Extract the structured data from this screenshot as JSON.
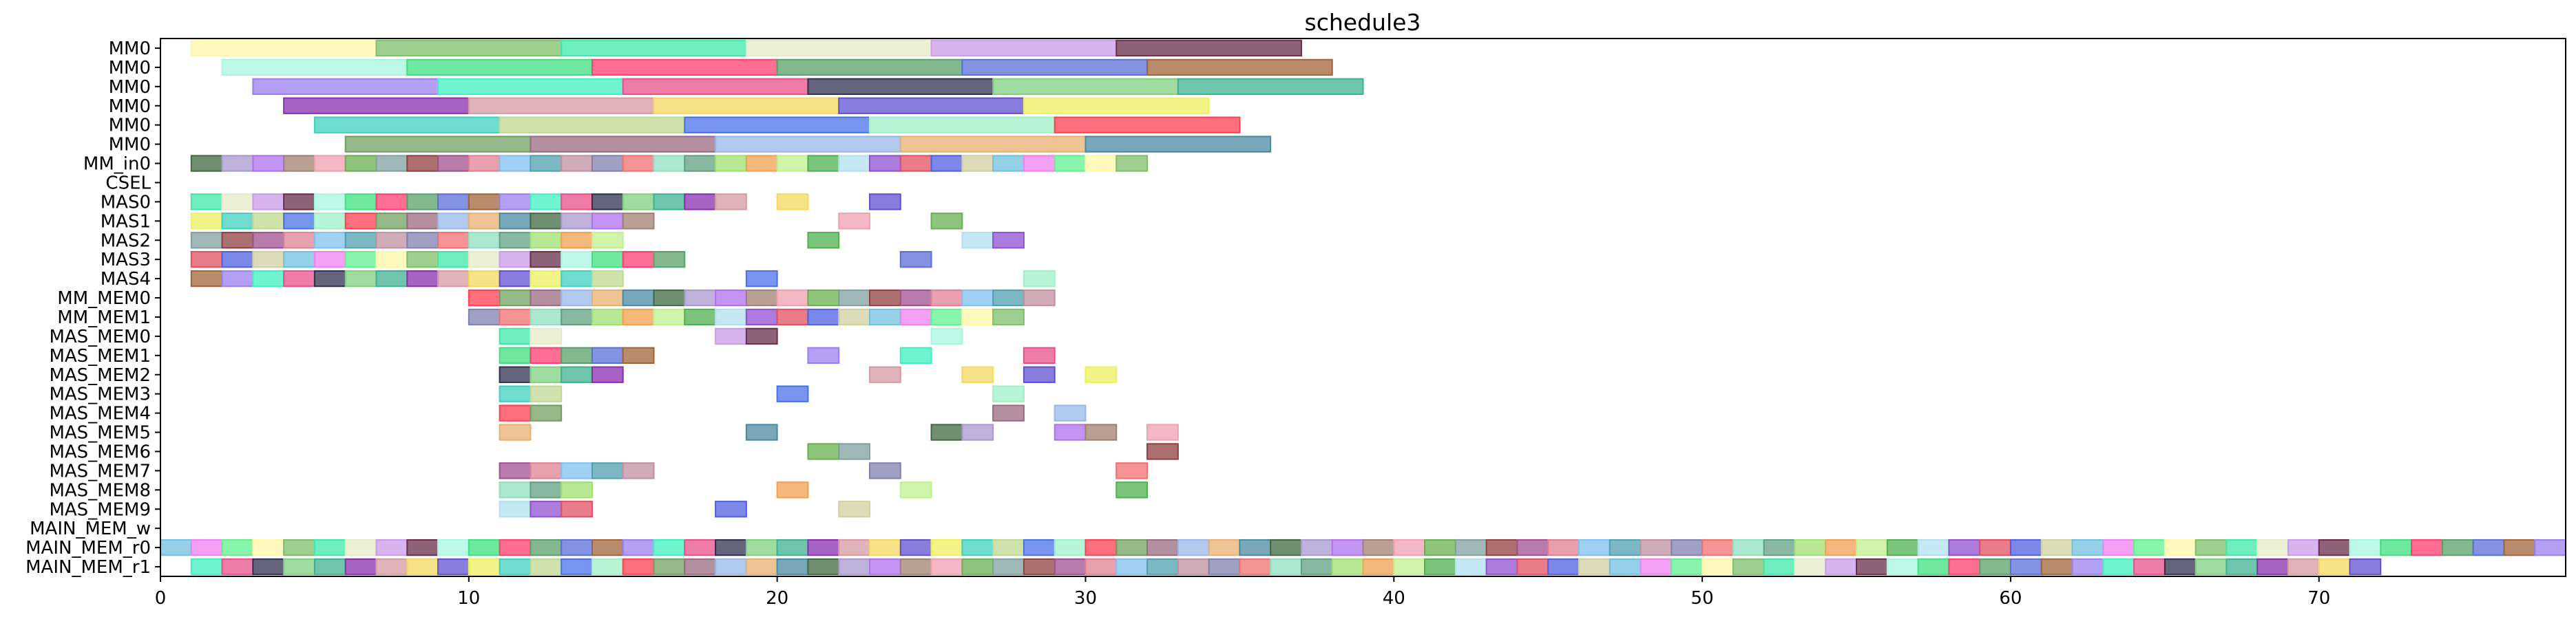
{
  "chart_data": {
    "type": "gantt",
    "title": "schedule3",
    "xlabel": "",
    "ylabel": "",
    "xlim": [
      0,
      78
    ],
    "xticks": [
      0,
      10,
      20,
      30,
      40,
      50,
      60,
      70
    ],
    "grid": false,
    "legend": "none",
    "rows": [
      "MM0",
      "MM0",
      "MM0",
      "MM0",
      "MM0",
      "MM0",
      "MM_in0",
      "CSEL",
      "MAS0",
      "MAS1",
      "MAS2",
      "MAS3",
      "MAS4",
      "MM_MEM0",
      "MM_MEM1",
      "MAS_MEM0",
      "MAS_MEM1",
      "MAS_MEM2",
      "MAS_MEM3",
      "MAS_MEM4",
      "MAS_MEM5",
      "MAS_MEM6",
      "MAS_MEM7",
      "MAS_MEM8",
      "MAS_MEM9",
      "MAIN_MEM_w",
      "MAIN_MEM_r0",
      "MAIN_MEM_r1"
    ],
    "tasks": [
      [
        [
          1,
          7
        ],
        [
          7,
          13
        ],
        [
          13,
          19
        ],
        [
          19,
          25
        ],
        [
          25,
          31
        ],
        [
          31,
          37
        ]
      ],
      [
        [
          2,
          8
        ],
        [
          8,
          14
        ],
        [
          14,
          20
        ],
        [
          20,
          26
        ],
        [
          26,
          32
        ],
        [
          32,
          38
        ]
      ],
      [
        [
          3,
          9
        ],
        [
          9,
          15
        ],
        [
          15,
          21
        ],
        [
          21,
          27
        ],
        [
          27,
          33
        ],
        [
          33,
          39
        ]
      ],
      [
        [
          4,
          10
        ],
        [
          10,
          16
        ],
        [
          16,
          22
        ],
        [
          22,
          28
        ],
        [
          28,
          34
        ]
      ],
      [
        [
          5,
          11
        ],
        [
          11,
          17
        ],
        [
          17,
          23
        ],
        [
          23,
          29
        ],
        [
          29,
          35
        ]
      ],
      [
        [
          6,
          12
        ],
        [
          12,
          18
        ],
        [
          18,
          24
        ],
        [
          24,
          30
        ],
        [
          30,
          36
        ]
      ],
      [
        [
          1,
          32
        ]
      ],
      [],
      [
        [
          1,
          19
        ],
        [
          20,
          21
        ],
        [
          23,
          24
        ]
      ],
      [
        [
          1,
          16
        ],
        [
          22,
          23
        ],
        [
          25,
          26
        ]
      ],
      [
        [
          1,
          15
        ],
        [
          21,
          22
        ],
        [
          26,
          28
        ]
      ],
      [
        [
          1,
          17
        ],
        [
          24,
          25
        ]
      ],
      [
        [
          1,
          15
        ],
        [
          19,
          20
        ],
        [
          28,
          29
        ]
      ],
      [
        [
          10,
          29
        ]
      ],
      [
        [
          10,
          28
        ]
      ],
      [
        [
          11,
          13
        ],
        [
          18,
          20
        ],
        [
          25,
          26
        ]
      ],
      [
        [
          11,
          16
        ],
        [
          21,
          22
        ],
        [
          24,
          25
        ],
        [
          28,
          29
        ]
      ],
      [
        [
          11,
          15
        ],
        [
          23,
          24
        ],
        [
          26,
          27
        ],
        [
          28,
          29
        ],
        [
          30,
          31
        ]
      ],
      [
        [
          11,
          13
        ],
        [
          20,
          21
        ],
        [
          27,
          28
        ]
      ],
      [
        [
          11,
          13
        ],
        [
          27,
          28
        ],
        [
          29,
          30
        ]
      ],
      [
        [
          11,
          12
        ],
        [
          19,
          20
        ],
        [
          25,
          27
        ],
        [
          29,
          31
        ],
        [
          32,
          33
        ]
      ],
      [
        [
          21,
          22
        ],
        [
          22,
          23
        ],
        [
          32,
          33
        ]
      ],
      [
        [
          11,
          16
        ],
        [
          23,
          24
        ],
        [
          31,
          32
        ]
      ],
      [
        [
          11,
          14
        ],
        [
          20,
          21
        ],
        [
          24,
          25
        ],
        [
          31,
          32
        ]
      ],
      [
        [
          11,
          14
        ],
        [
          18,
          19
        ],
        [
          22,
          23
        ]
      ],
      [],
      [
        [
          0,
          78
        ]
      ],
      [
        [
          1,
          72
        ]
      ]
    ]
  }
}
